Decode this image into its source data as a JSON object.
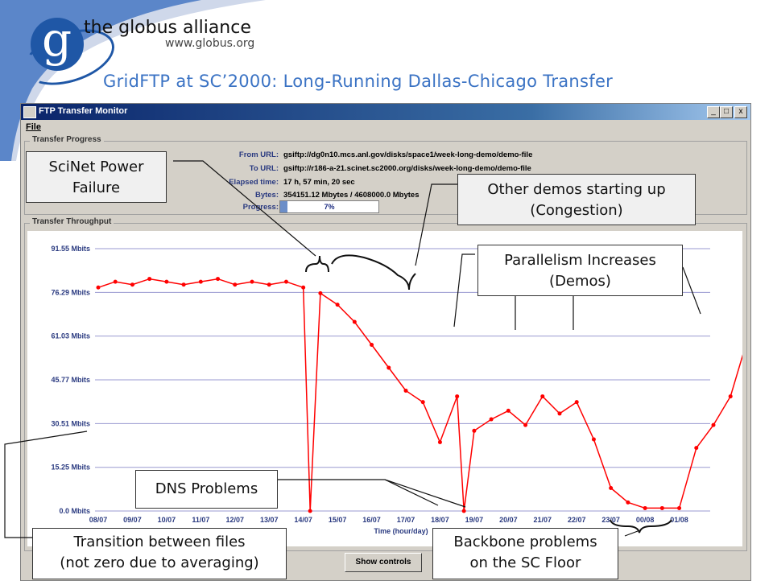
{
  "branding": {
    "name": "the globus alliance",
    "url": "www.globus.org",
    "logo_letter": "g",
    "color": "#1f57a6"
  },
  "slide_title": "GridFTP at SC’2000: Long-Running Dallas-Chicago Transfer",
  "window": {
    "title": "FTP Transfer Monitor",
    "controls": [
      "_",
      "□",
      "x"
    ],
    "menu": [
      "File"
    ]
  },
  "transfer_progress": {
    "group_label": "Transfer Progress",
    "rows": [
      {
        "label": "From URL:",
        "value": "gsiftp://dg0n10.mcs.anl.gov/disks/space1/week-long-demo/demo-file"
      },
      {
        "label": "To URL:",
        "value": "gsiftp://r186-a-21.scinet.sc2000.org/disks/week-long-demo/demo-file"
      },
      {
        "label": "Elapsed time:",
        "value": "17 h, 57 min, 20 sec"
      },
      {
        "label": "Bytes:",
        "value": "354151.12 Mbytes / 4608000.0 Mbytes"
      },
      {
        "label": "Progress:",
        "value": ""
      }
    ],
    "progress_percent": 7,
    "progress_text": "7%"
  },
  "throughput_group_label": "Transfer Throughput",
  "show_controls_label": "Show controls",
  "callouts": {
    "scinet": [
      "SciNet Power",
      "Failure"
    ],
    "other_demos": [
      "Other demos starting up",
      "(Congestion)"
    ],
    "parallelism": [
      "Parallelism Increases",
      "(Demos)"
    ],
    "dns": [
      "DNS Problems"
    ],
    "transition": [
      "Transition between files",
      "(not zero due to averaging)"
    ],
    "backbone": [
      "Backbone problems",
      "on the SC Floor"
    ]
  },
  "chart_data": {
    "type": "line",
    "xlabel": "Time (hour/day)",
    "ylabel": "",
    "y_ticks": [
      "0.0 Mbits",
      "15.25 Mbits",
      "30.51 Mbits",
      "45.77 Mbits",
      "61.03 Mbits",
      "76.29 Mbits",
      "91.55 Mbits"
    ],
    "y_tick_values": [
      0,
      15.25,
      30.51,
      45.77,
      61.03,
      76.29,
      91.55
    ],
    "x_ticks": [
      "08/07",
      "09/07",
      "10/07",
      "11/07",
      "12/07",
      "13/07",
      "14/07",
      "15/07",
      "16/07",
      "17/07",
      "18/07",
      "19/07",
      "20/07",
      "21/07",
      "22/07",
      "23/07",
      "00/08",
      "01/08"
    ],
    "ylim": [
      0,
      91.55
    ],
    "grid": true,
    "series_color": "#ff0000",
    "series": [
      {
        "x": [
          0,
          0.5,
          1,
          1.5,
          2,
          2.5,
          3,
          3.5,
          4,
          4.5,
          5,
          5.5,
          6,
          6.2,
          6.5,
          7,
          7.5,
          8,
          8.5,
          9,
          9.5,
          10,
          10.5,
          10.7,
          11,
          11.5,
          12,
          12.5,
          13,
          13.5,
          14,
          14.5,
          15,
          15.5,
          16,
          16.5,
          17,
          17.5,
          18,
          18.5,
          19
        ],
        "y": [
          78,
          80,
          79,
          81,
          80,
          79,
          80,
          81,
          79,
          80,
          79,
          80,
          78,
          0,
          76,
          72,
          66,
          58,
          50,
          42,
          38,
          24,
          40,
          0,
          28,
          32,
          35,
          30,
          40,
          34,
          38,
          25,
          8,
          3,
          1,
          1,
          1,
          22,
          30,
          40,
          60
        ]
      }
    ]
  }
}
